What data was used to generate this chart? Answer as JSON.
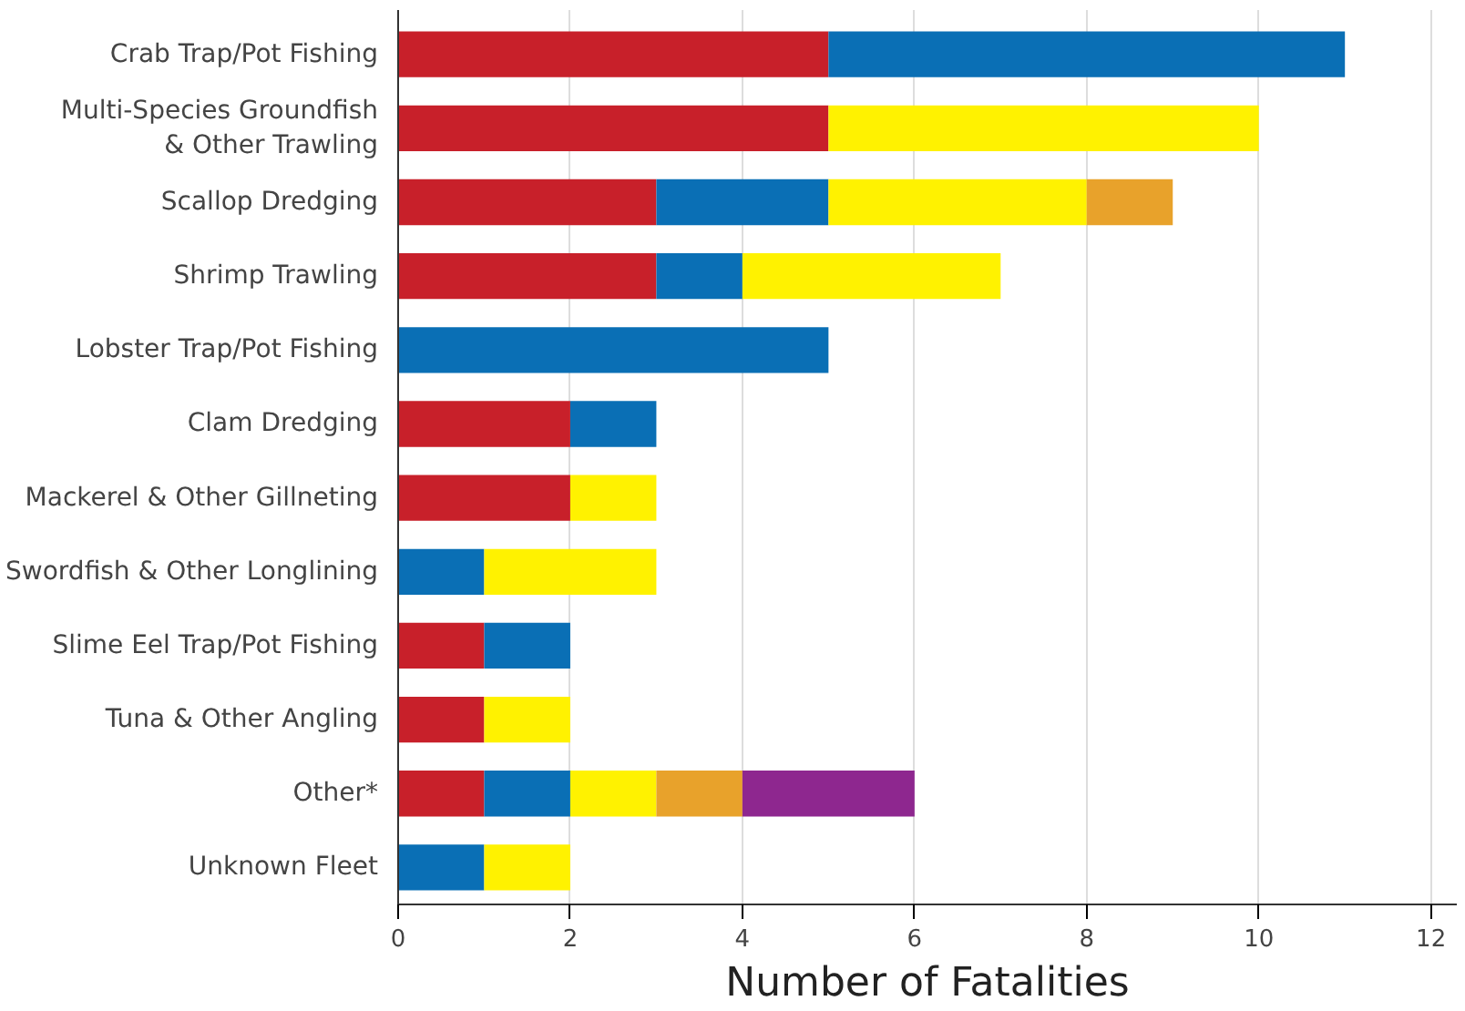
{
  "chart_data": {
    "type": "bar",
    "orientation": "horizontal",
    "stacked": true,
    "xlabel": "Number of Fatalities",
    "categories": [
      "Crab Trap/Pot Fishing",
      "Multi-Species Groundfish\n& Other Trawling",
      "Scallop Dredging",
      "Shrimp Trawling",
      "Lobster Trap/Pot Fishing",
      "Clam Dredging",
      "Mackerel & Other Gillneting",
      "Swordfish & Other Longlining",
      "Slime Eel Trap/Pot Fishing",
      "Tuna & Other Angling",
      "Other*",
      "Unknown Fleet"
    ],
    "series": [
      {
        "color": "#c8202a",
        "values": [
          5,
          5,
          3,
          3,
          null,
          2,
          2,
          null,
          1,
          1,
          1,
          null
        ]
      },
      {
        "color": "#0a6fb5",
        "values": [
          6,
          null,
          2,
          1,
          5,
          1,
          null,
          1,
          1,
          null,
          1,
          1
        ]
      },
      {
        "color": "#fff200",
        "values": [
          null,
          5,
          3,
          3,
          null,
          null,
          1,
          2,
          null,
          1,
          1,
          1
        ]
      },
      {
        "color": "#e8a22b",
        "values": [
          null,
          null,
          1,
          null,
          null,
          null,
          null,
          null,
          null,
          null,
          1,
          null
        ]
      },
      {
        "color": "#8e278f",
        "values": [
          null,
          null,
          null,
          null,
          null,
          null,
          null,
          null,
          null,
          null,
          2,
          null
        ]
      }
    ],
    "xlim": [
      0,
      12.3
    ],
    "xticks": [
      0,
      2,
      4,
      6,
      8,
      10,
      12
    ],
    "grid": "x"
  }
}
